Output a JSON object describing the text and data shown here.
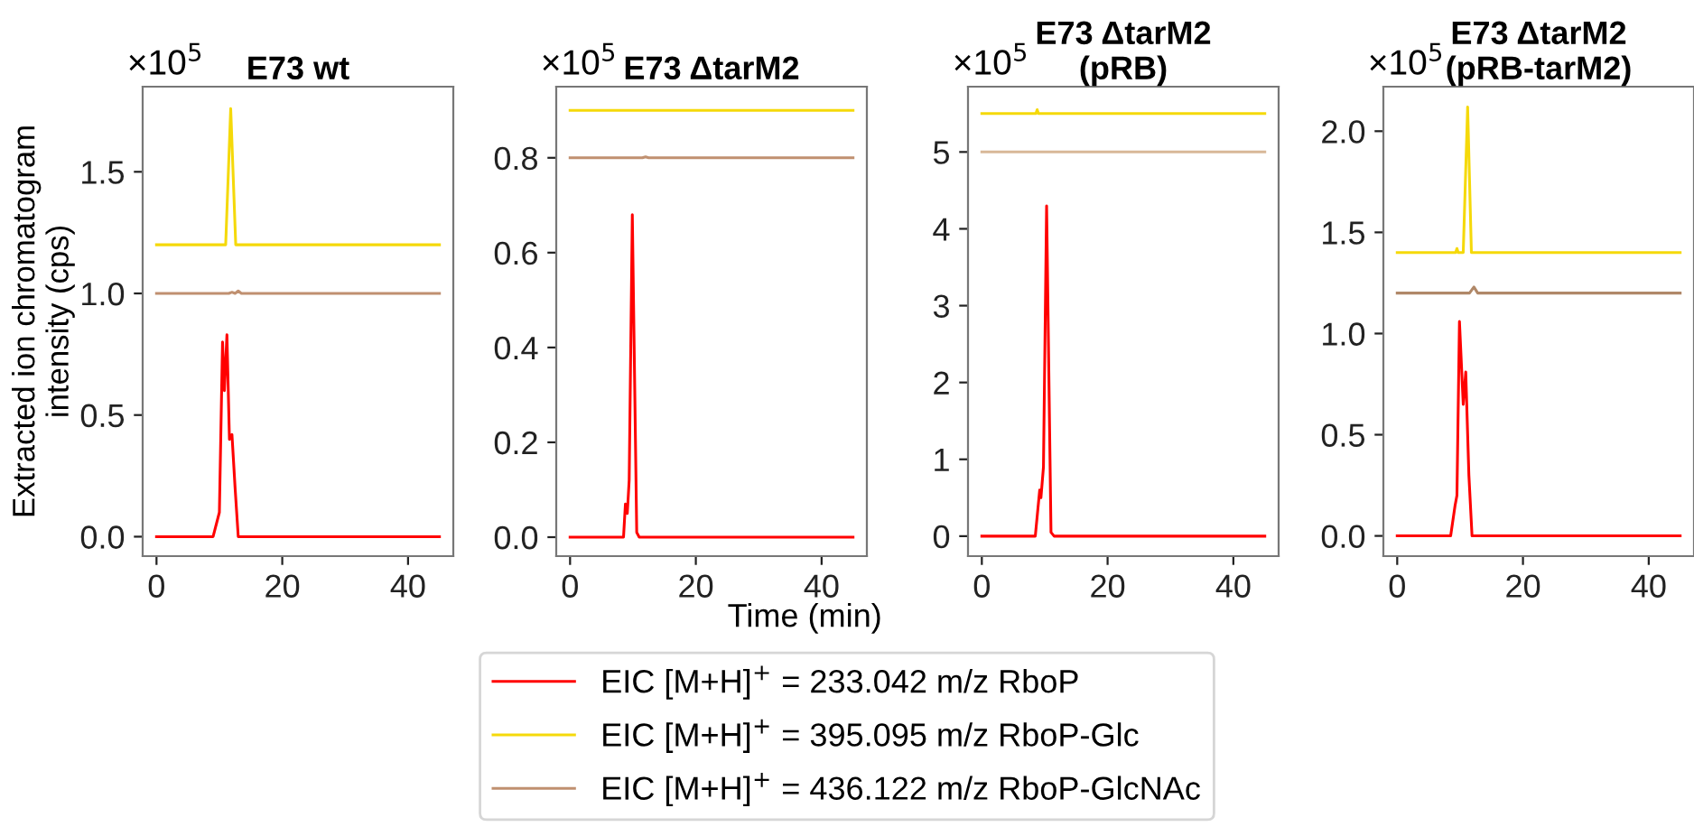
{
  "chart_data": [
    {
      "type": "line",
      "title": "E73 wt",
      "ylabel": "Extracted ion chromatogram\nintensity (cps)",
      "annotations": [
        "×10$^{5}$"
      ],
      "legend": "bottom",
      "xlim": [
        -2.2,
        47.2
      ],
      "xticks": [
        0,
        20,
        40
      ],
      "ylim": [
        -0.08,
        1.85
      ],
      "yticks": [
        {
          "value": 0,
          "label": "0.0"
        },
        {
          "value": 0.5,
          "label": "0.5"
        },
        {
          "value": 1.0,
          "label": "1.0"
        },
        {
          "value": 1.5,
          "label": "1.5"
        }
      ],
      "series": [
        {
          "name": "EIC [M+H]$^{+}$ = 233.042 m/z RboP",
          "color": "#ff0000",
          "x": [
            0,
            9,
            10,
            10.5,
            10.8,
            11.2,
            11.6,
            12,
            12.5,
            13,
            45
          ],
          "values": [
            0,
            0,
            0.1,
            0.8,
            0.6,
            0.83,
            0.4,
            0.42,
            0.2,
            0,
            0
          ]
        },
        {
          "name": "EIC [M+H]$^{+}$ = 395.095 m/z RboP-Glc",
          "color": "#f5d90a",
          "x": [
            0,
            11,
            11.8,
            12.6,
            45
          ],
          "values": [
            1.2,
            1.2,
            1.76,
            1.2,
            1.2
          ]
        },
        {
          "name": "EIC [M+H]$^{+}$ = 436.122 m/z RboP-GlcNAc",
          "color": "#c09070",
          "x": [
            0,
            11.5,
            12,
            12.5,
            13,
            13.5,
            45
          ],
          "values": [
            1.0,
            1.0,
            1.005,
            1.0,
            1.01,
            1.0,
            1.0
          ]
        }
      ]
    },
    {
      "type": "line",
      "title": "E73 ΔtarM2",
      "xlabel": "Time (min)",
      "annotations": [
        "×10$^{5}$"
      ],
      "xlim": [
        -2.2,
        47.2
      ],
      "xticks": [
        0,
        20,
        40
      ],
      "ylim": [
        -0.04,
        0.95
      ],
      "yticks": [
        {
          "value": 0,
          "label": "0.0"
        },
        {
          "value": 0.2,
          "label": "0.2"
        },
        {
          "value": 0.4,
          "label": "0.4"
        },
        {
          "value": 0.6,
          "label": "0.6"
        },
        {
          "value": 0.8,
          "label": "0.8"
        }
      ],
      "series": [
        {
          "color": "#ff0000",
          "x": [
            0,
            8.5,
            8.8,
            9.1,
            9.4,
            9.9,
            10.6,
            11,
            45
          ],
          "values": [
            0,
            0,
            0.07,
            0.05,
            0.12,
            0.68,
            0.01,
            0,
            0
          ]
        },
        {
          "color": "#f5d90a",
          "x": [
            0,
            45
          ],
          "values": [
            0.9,
            0.9
          ]
        },
        {
          "color": "#c09070",
          "x": [
            0,
            11.5,
            12,
            12.5,
            45
          ],
          "values": [
            0.8,
            0.8,
            0.802,
            0.8,
            0.8
          ]
        }
      ]
    },
    {
      "type": "line",
      "title": "E73 ΔtarM2\n(pRB)",
      "annotations": [
        "×10$^{5}$"
      ],
      "xlim": [
        -2.2,
        47.2
      ],
      "xticks": [
        0,
        20,
        40
      ],
      "ylim": [
        -0.26,
        5.85
      ],
      "yticks": [
        0,
        1,
        2,
        3,
        4,
        5
      ],
      "series": [
        {
          "color": "#ff0000",
          "x": [
            0,
            8.5,
            9.2,
            9.4,
            9.8,
            10.3,
            11,
            11.5,
            45
          ],
          "values": [
            0,
            0,
            0.6,
            0.5,
            0.9,
            4.3,
            0.05,
            0,
            0
          ]
        },
        {
          "color": "#f5d90a",
          "x": [
            0,
            8.6,
            8.8,
            9.0,
            45
          ],
          "values": [
            5.5,
            5.5,
            5.55,
            5.5,
            5.5
          ]
        },
        {
          "color": "#d8b898",
          "x": [
            0,
            45
          ],
          "values": [
            5.0,
            5.0
          ]
        }
      ]
    },
    {
      "type": "line",
      "title": "E73 ΔtarM2\n(pRB-tarM2)",
      "annotations": [
        "×10$^{5}$"
      ],
      "xlim": [
        -2.2,
        47.2
      ],
      "xticks": [
        0,
        20,
        40
      ],
      "ylim": [
        -0.1,
        2.22
      ],
      "yticks": [
        {
          "value": 0,
          "label": "0.0"
        },
        {
          "value": 0.5,
          "label": "0.5"
        },
        {
          "value": 1.0,
          "label": "1.0"
        },
        {
          "value": 1.5,
          "label": "1.5"
        },
        {
          "value": 2.0,
          "label": "2.0"
        }
      ],
      "series": [
        {
          "color": "#ff0000",
          "x": [
            0,
            8.5,
            9.2,
            9.5,
            9.9,
            10.5,
            10.9,
            11.4,
            11.9,
            45
          ],
          "values": [
            0,
            0,
            0.15,
            0.2,
            1.06,
            0.65,
            0.81,
            0.3,
            0,
            0
          ]
        },
        {
          "color": "#f5d90a",
          "x": [
            0,
            9.3,
            9.5,
            9.7,
            10.5,
            11.2,
            11.8,
            45
          ],
          "values": [
            1.4,
            1.4,
            1.42,
            1.4,
            1.4,
            2.12,
            1.4,
            1.4
          ]
        },
        {
          "color": "#b08868",
          "x": [
            0,
            11.5,
            12.2,
            12.8,
            45
          ],
          "values": [
            1.2,
            1.2,
            1.23,
            1.2,
            1.2
          ]
        }
      ]
    }
  ]
}
